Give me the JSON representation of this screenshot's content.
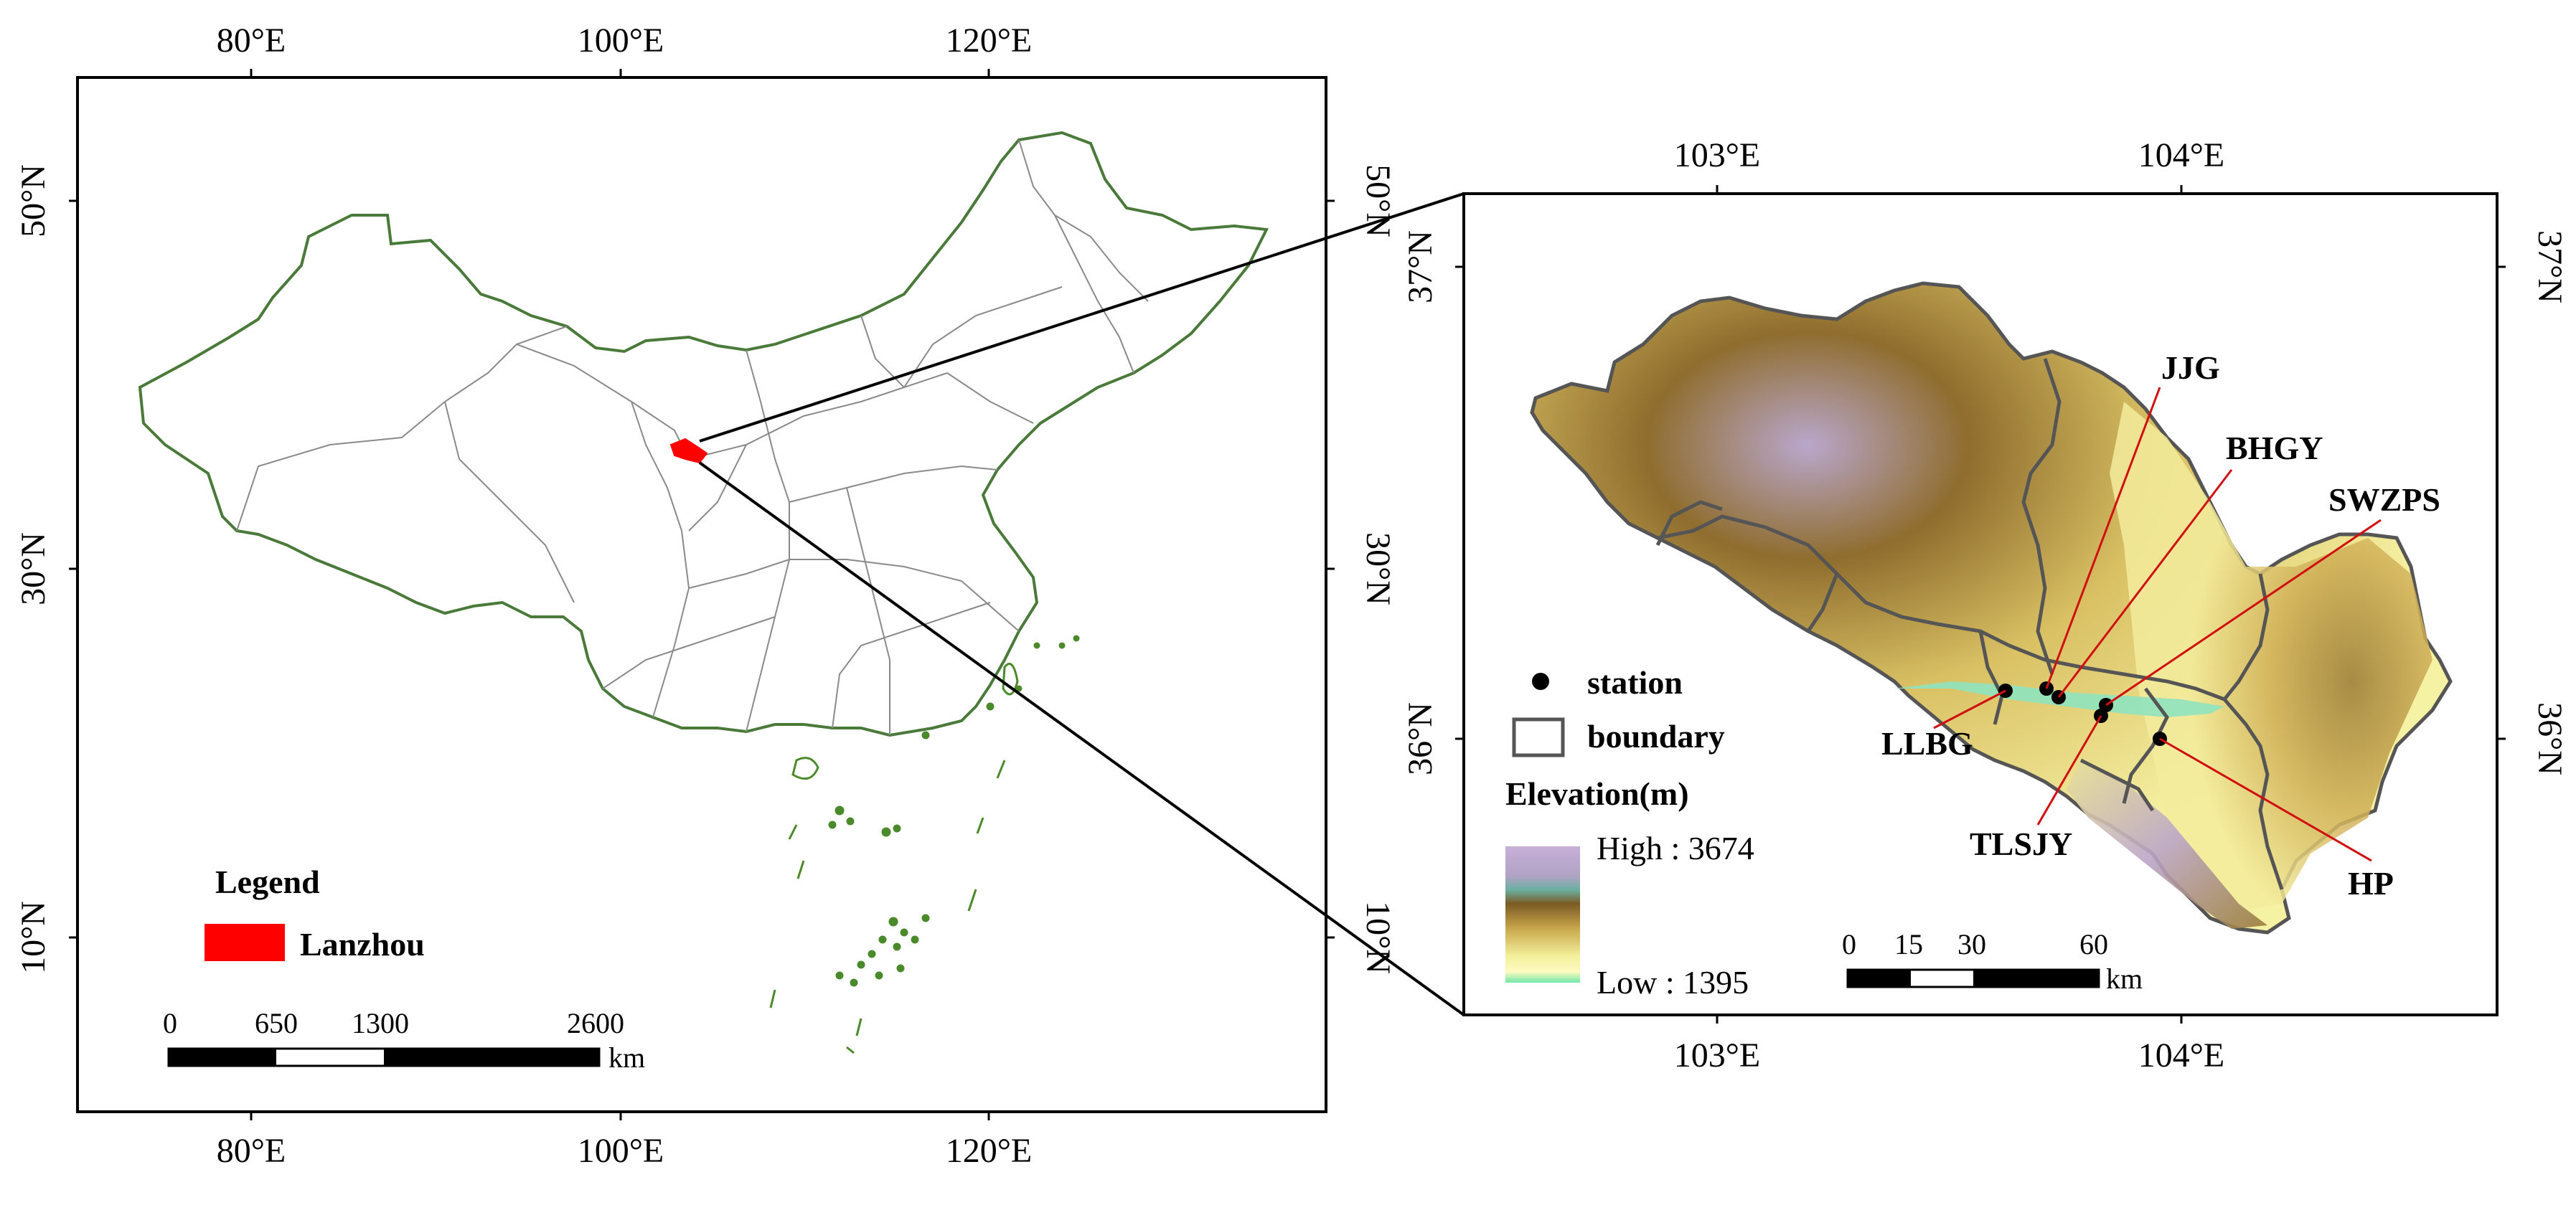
{
  "left_map": {
    "lon_ticks": [
      "80°E",
      "100°E",
      "120°E"
    ],
    "lat_ticks": [
      "50°N",
      "30°N",
      "10°N"
    ],
    "legend": {
      "title": "Legend",
      "item": "Lanzhou",
      "item_color": "#ff0000"
    },
    "scale_bar": {
      "ticks": [
        "0",
        "650",
        "1300",
        "2600"
      ],
      "unit": "km"
    }
  },
  "right_map": {
    "lon_ticks": [
      "103°E",
      "104°E"
    ],
    "lat_ticks": [
      "37°N",
      "36°N"
    ],
    "stations": [
      {
        "name": "JJG"
      },
      {
        "name": "BHGY"
      },
      {
        "name": "SWZPS"
      },
      {
        "name": "LLBG"
      },
      {
        "name": "TLSJY"
      },
      {
        "name": "HP"
      }
    ],
    "legend": {
      "station": "station",
      "boundary": "boundary",
      "elevation_title": "Elevation(m)",
      "high": "High : 3674",
      "low": "Low : 1395"
    },
    "scale_bar": {
      "ticks": [
        "0",
        "15",
        "30",
        "60"
      ],
      "unit": "km"
    }
  },
  "colors": {
    "country_border": "#4a7a3a",
    "province": "#8a8a8a",
    "lanzhou": "#ff0000",
    "callout": "#d01010",
    "boundary": "#555555"
  }
}
